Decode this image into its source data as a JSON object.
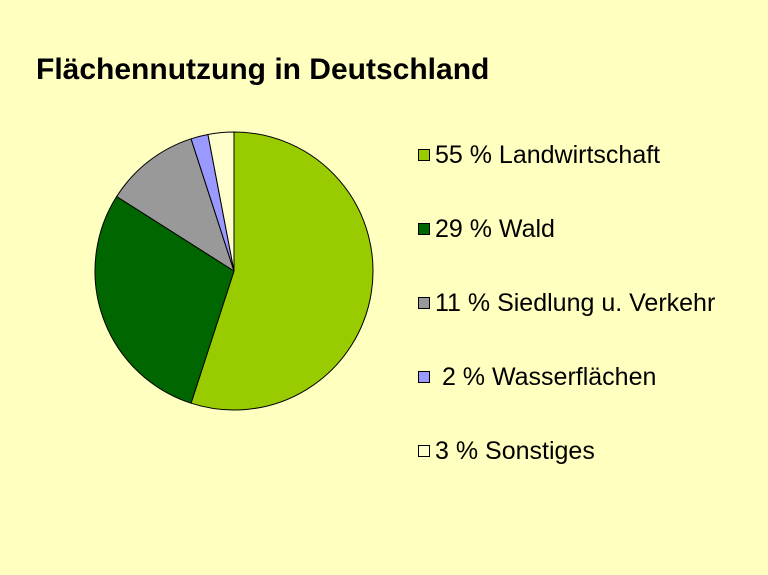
{
  "chart_data": {
    "type": "pie",
    "title": "Flächennutzung in Deutschland",
    "categories": [
      "Landwirtschaft",
      "Wald",
      "Siedlung u. Verkehr",
      "Wasserflächen",
      "Sonstiges"
    ],
    "values": [
      55,
      29,
      11,
      2,
      3
    ],
    "colors": [
      "#99cc00",
      "#006600",
      "#999999",
      "#9999ff",
      "#ffffcc"
    ],
    "legend_labels": [
      "55 % Landwirtschaft",
      "29 % Wald",
      "11 % Siedlung u. Verkehr",
      " 2 % Wasserflächen",
      "3 % Sonstiges"
    ],
    "legend_position": "right",
    "start_angle": "12 o'clock",
    "direction": "clockwise"
  }
}
